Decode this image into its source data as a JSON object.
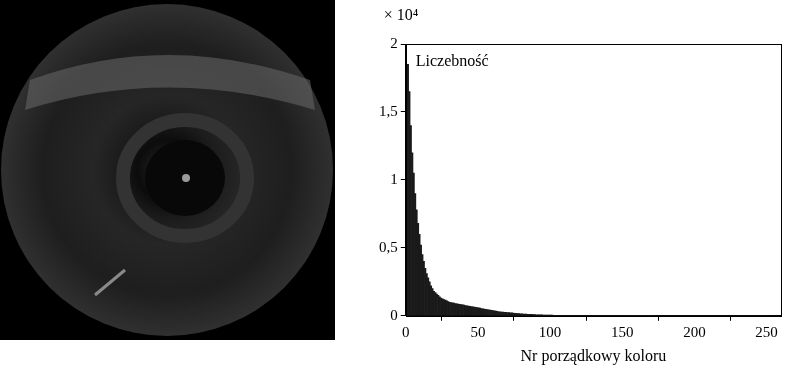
{
  "chart_data": {
    "type": "histogram",
    "xlabel": "Nr porządkowy koloru",
    "ylabel": "Liczebność",
    "annotations": [
      "× 10⁴"
    ],
    "color": "#1a1a1a",
    "grid": false,
    "xlim": [
      0,
      260
    ],
    "xticks": [
      0,
      50,
      100,
      150,
      200,
      250
    ],
    "ylim": [
      0,
      2
    ],
    "yticks": [
      0,
      {
        "value": 0.5,
        "label": "0,5"
      },
      1,
      {
        "value": 1.5,
        "label": "1,5"
      },
      2
    ],
    "bins": [
      0,
      1,
      2,
      3,
      4,
      5,
      6,
      7,
      8,
      9,
      10,
      11,
      12,
      13,
      14,
      15,
      16,
      17,
      18,
      19,
      20,
      21,
      22,
      23,
      24,
      25,
      26,
      27,
      28,
      29,
      30,
      31,
      32,
      33,
      34,
      35,
      36,
      37,
      38,
      39,
      40,
      41,
      42,
      43,
      44,
      45,
      46,
      47,
      48,
      49,
      50,
      51,
      52,
      53,
      54,
      55,
      56,
      57,
      58,
      59,
      60,
      61,
      62,
      63,
      64,
      65,
      66,
      67,
      68,
      69,
      70,
      71,
      72,
      73,
      74,
      75,
      76,
      77,
      78,
      79,
      80,
      81,
      82,
      83,
      84,
      85,
      86,
      87,
      88,
      89,
      90,
      91,
      92,
      93,
      94,
      95,
      96,
      97,
      98,
      99,
      100,
      101,
      102,
      103,
      104,
      105,
      106,
      107,
      108,
      109,
      110,
      111,
      112,
      113,
      114,
      115,
      116,
      117,
      118,
      119,
      120,
      121,
      122,
      123,
      124,
      125,
      126,
      127,
      128,
      129,
      130,
      131,
      132,
      133,
      134,
      135,
      136,
      137,
      138,
      139,
      140,
      141,
      142,
      143,
      144,
      145,
      146,
      147,
      148,
      149,
      150,
      151,
      152,
      153,
      154,
      155,
      156,
      157,
      158,
      159,
      160,
      161,
      162,
      163,
      164,
      165,
      166,
      167,
      168,
      169,
      170,
      171,
      172,
      173,
      174,
      175,
      176,
      177,
      178,
      179,
      180,
      181,
      182,
      183,
      184,
      185,
      186,
      187,
      188,
      189,
      190,
      191,
      192,
      193,
      194,
      195,
      196,
      197,
      198,
      199,
      200,
      201,
      202,
      203,
      204,
      205,
      206,
      207,
      208,
      209,
      210,
      211,
      212,
      213,
      214,
      215,
      216,
      217,
      218,
      219,
      220,
      221,
      222,
      223,
      224,
      225,
      226,
      227,
      228,
      229,
      230,
      231,
      232,
      233,
      234,
      235,
      236,
      237,
      238,
      239,
      240,
      241,
      242,
      243,
      244,
      245,
      246,
      247,
      248,
      249,
      250,
      251,
      252,
      253,
      254,
      255,
      256
    ],
    "values": [
      1.2,
      1.85,
      1.65,
      1.4,
      1.2,
      1.05,
      0.9,
      0.78,
      0.68,
      0.6,
      0.52,
      0.45,
      0.4,
      0.35,
      0.31,
      0.28,
      0.25,
      0.22,
      0.2,
      0.18,
      0.17,
      0.16,
      0.15,
      0.14,
      0.13,
      0.125,
      0.12,
      0.115,
      0.11,
      0.105,
      0.1,
      0.098,
      0.095,
      0.093,
      0.09,
      0.088,
      0.086,
      0.084,
      0.082,
      0.08,
      0.078,
      0.076,
      0.074,
      0.072,
      0.07,
      0.068,
      0.066,
      0.064,
      0.062,
      0.06,
      0.058,
      0.056,
      0.054,
      0.052,
      0.05,
      0.048,
      0.046,
      0.044,
      0.042,
      0.04,
      0.038,
      0.036,
      0.034,
      0.032,
      0.03,
      0.029,
      0.028,
      0.027,
      0.026,
      0.025,
      0.024,
      0.023,
      0.022,
      0.021,
      0.02,
      0.019,
      0.018,
      0.017,
      0.016,
      0.015,
      0.014,
      0.013,
      0.012,
      0.012,
      0.011,
      0.011,
      0.01,
      0.01,
      0.009,
      0.009,
      0.008,
      0.008,
      0.007,
      0.007,
      0.007,
      0.006,
      0.006,
      0.006,
      0.005,
      0.005,
      0.005,
      0.005,
      0.004,
      0.004,
      0.004,
      0.004,
      0.004,
      0.004,
      0.004,
      0.004,
      0.004,
      0.004,
      0.004,
      0.003,
      0.003,
      0.003,
      0.003,
      0.003,
      0.003,
      0.003,
      0.003,
      0.003,
      0.003,
      0.003,
      0.003,
      0.003,
      0.003,
      0.002,
      0.002,
      0.002,
      0.002,
      0.002,
      0.002,
      0.002,
      0.002,
      0.002,
      0.002,
      0.002,
      0.002,
      0.002,
      0.002,
      0.002,
      0.002,
      0.002,
      0.002,
      0.002,
      0.002,
      0.002,
      0.002,
      0.002,
      0.002,
      0.002,
      0.002,
      0.002,
      0.002,
      0.001,
      0.001,
      0.001,
      0.001,
      0.001,
      0.001,
      0.001,
      0.001,
      0.001,
      0.001,
      0.001,
      0.001,
      0.001,
      0.001,
      0.001,
      0.001,
      0,
      0,
      0,
      0,
      0,
      0,
      0,
      0,
      0,
      0,
      0,
      0,
      0,
      0,
      0,
      0,
      0,
      0,
      0,
      0,
      0,
      0,
      0,
      0,
      0,
      0,
      0,
      0,
      0,
      0,
      0,
      0,
      0,
      0,
      0,
      0,
      0,
      0,
      0,
      0,
      0,
      0,
      0,
      0,
      0,
      0,
      0,
      0,
      0,
      0,
      0,
      0,
      0,
      0,
      0,
      0,
      0,
      0,
      0,
      0,
      0,
      0,
      0,
      0,
      0,
      0,
      0,
      0,
      0,
      0,
      0,
      0,
      0,
      0,
      0,
      0,
      0,
      0,
      0,
      0,
      0,
      0,
      0,
      0,
      0
    ]
  }
}
